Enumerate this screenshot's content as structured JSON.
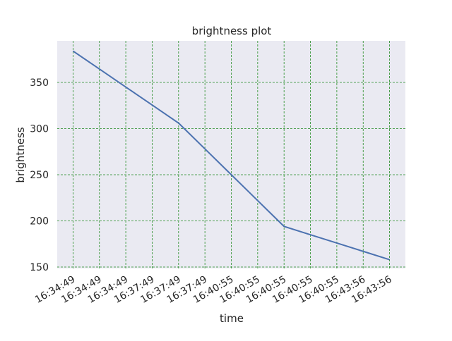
{
  "chart_data": {
    "type": "line",
    "title": "brightness plot",
    "x_label": "time",
    "y_label": "brightness",
    "categories": [
      "16:34:49",
      "16:34:49",
      "16:34:49",
      "16:37:49",
      "16:37:49",
      "16:37:49",
      "16:40:55",
      "16:40:55",
      "16:40:55",
      "16:40:55",
      "16:40:55",
      "16:43:56",
      "16:43:56"
    ],
    "series": [
      {
        "name": "brightness",
        "color": "#4c72b0",
        "values": [
          384,
          364.5,
          345,
          325.5,
          306,
          278,
          250,
          222,
          194,
          185,
          176,
          167,
          158
        ]
      }
    ],
    "ylim": [
      148.5,
      395
    ],
    "yticks": [
      150,
      200,
      250,
      300,
      350
    ],
    "grid": true,
    "grid_color": "#228b22"
  }
}
